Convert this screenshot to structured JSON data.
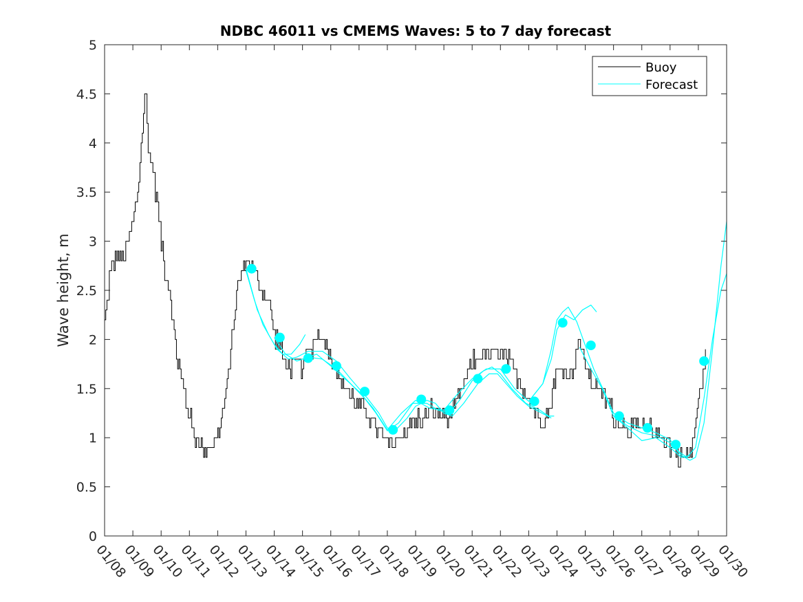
{
  "chart_data": {
    "type": "line",
    "title": "NDBC 46011 vs CMEMS Waves: 5 to 7 day forecast",
    "xlabel": "",
    "ylabel": "Wave height, m",
    "xlim": [
      0,
      22
    ],
    "ylim": [
      0,
      5
    ],
    "x_unit": "days since 01/08",
    "yticks": [
      0,
      0.5,
      1,
      1.5,
      2,
      2.5,
      3,
      3.5,
      4,
      4.5,
      5
    ],
    "ytick_labels": [
      "0",
      "0.5",
      "1",
      "1.5",
      "2",
      "2.5",
      "3",
      "3.5",
      "4",
      "4.5",
      "5"
    ],
    "xticks": [
      0,
      1,
      2,
      3,
      4,
      5,
      6,
      7,
      8,
      9,
      10,
      11,
      12,
      13,
      14,
      15,
      16,
      17,
      18,
      19,
      20,
      21,
      22
    ],
    "xtick_labels": [
      "01/08",
      "01/09",
      "01/10",
      "01/11",
      "01/12",
      "01/13",
      "01/14",
      "01/15",
      "01/16",
      "01/17",
      "01/18",
      "01/19",
      "01/20",
      "01/21",
      "01/22",
      "01/23",
      "01/24",
      "01/25",
      "01/26",
      "01/27",
      "01/28",
      "01/29",
      "01/30"
    ],
    "legend": {
      "position": "top-right",
      "entries": [
        {
          "label": "Buoy",
          "color": "#000000"
        },
        {
          "label": "Forecast",
          "color": "#00ffff"
        }
      ]
    },
    "buoy": {
      "name": "Buoy",
      "color": "#000000",
      "noise_amplitude": 0.13,
      "points": [
        [
          0,
          2.15
        ],
        [
          0.15,
          2.6
        ],
        [
          0.3,
          2.8
        ],
        [
          0.5,
          2.85
        ],
        [
          0.7,
          2.8
        ],
        [
          0.85,
          3.05
        ],
        [
          1.0,
          3.2
        ],
        [
          1.2,
          3.6
        ],
        [
          1.35,
          4.2
        ],
        [
          1.45,
          4.5
        ],
        [
          1.55,
          3.9
        ],
        [
          1.7,
          3.75
        ],
        [
          1.85,
          3.4
        ],
        [
          2.0,
          3.0
        ],
        [
          2.15,
          2.7
        ],
        [
          2.3,
          2.5
        ],
        [
          2.4,
          2.2
        ],
        [
          2.55,
          1.85
        ],
        [
          2.7,
          1.6
        ],
        [
          2.9,
          1.35
        ],
        [
          3.1,
          1.1
        ],
        [
          3.3,
          0.95
        ],
        [
          3.5,
          0.88
        ],
        [
          3.7,
          0.9
        ],
        [
          3.9,
          0.97
        ],
        [
          4.1,
          1.15
        ],
        [
          4.3,
          1.45
        ],
        [
          4.45,
          1.9
        ],
        [
          4.6,
          2.3
        ],
        [
          4.8,
          2.7
        ],
        [
          5.0,
          2.8
        ],
        [
          5.2,
          2.75
        ],
        [
          5.4,
          2.6
        ],
        [
          5.6,
          2.5
        ],
        [
          5.8,
          2.4
        ],
        [
          6.0,
          2.05
        ],
        [
          6.2,
          1.9
        ],
        [
          6.4,
          1.75
        ],
        [
          6.6,
          1.72
        ],
        [
          6.8,
          1.75
        ],
        [
          7.0,
          1.7
        ],
        [
          7.2,
          1.85
        ],
        [
          7.4,
          2.0
        ],
        [
          7.6,
          2.05
        ],
        [
          7.8,
          1.95
        ],
        [
          8.0,
          1.85
        ],
        [
          8.2,
          1.65
        ],
        [
          8.5,
          1.5
        ],
        [
          8.8,
          1.4
        ],
        [
          9.1,
          1.3
        ],
        [
          9.4,
          1.2
        ],
        [
          9.7,
          1.05
        ],
        [
          10.0,
          0.95
        ],
        [
          10.3,
          0.95
        ],
        [
          10.6,
          1.05
        ],
        [
          10.9,
          1.15
        ],
        [
          11.2,
          1.2
        ],
        [
          11.5,
          1.25
        ],
        [
          11.8,
          1.25
        ],
        [
          12.1,
          1.2
        ],
        [
          12.4,
          1.3
        ],
        [
          12.7,
          1.55
        ],
        [
          13.0,
          1.75
        ],
        [
          13.3,
          1.85
        ],
        [
          13.6,
          1.85
        ],
        [
          13.9,
          1.85
        ],
        [
          14.2,
          1.8
        ],
        [
          14.5,
          1.65
        ],
        [
          14.8,
          1.5
        ],
        [
          15.1,
          1.3
        ],
        [
          15.3,
          1.25
        ],
        [
          15.5,
          1.2
        ],
        [
          15.7,
          1.25
        ],
        [
          15.85,
          1.55
        ],
        [
          16.1,
          1.7
        ],
        [
          16.4,
          1.65
        ],
        [
          16.6,
          1.75
        ],
        [
          16.75,
          2.05
        ],
        [
          16.9,
          1.8
        ],
        [
          17.2,
          1.6
        ],
        [
          17.5,
          1.45
        ],
        [
          17.8,
          1.35
        ],
        [
          18.1,
          1.2
        ],
        [
          18.4,
          1.1
        ],
        [
          18.7,
          1.1
        ],
        [
          19.0,
          1.1
        ],
        [
          19.3,
          1.07
        ],
        [
          19.6,
          1.05
        ],
        [
          19.9,
          0.95
        ],
        [
          20.2,
          0.85
        ],
        [
          20.5,
          0.8
        ],
        [
          20.7,
          0.85
        ],
        [
          20.85,
          1.05
        ],
        [
          21.0,
          1.35
        ],
        [
          21.15,
          1.65
        ],
        [
          21.25,
          1.8
        ]
      ]
    },
    "forecast_runs": [
      {
        "name": "Forecast",
        "color": "#00ffff",
        "points": [
          [
            5.0,
            2.7
          ],
          [
            5.3,
            2.4
          ],
          [
            5.6,
            2.15
          ],
          [
            6.0,
            1.95
          ],
          [
            6.3,
            1.85
          ],
          [
            6.6,
            1.85
          ],
          [
            6.9,
            1.95
          ],
          [
            7.1,
            2.05
          ]
        ]
      },
      {
        "name": "Forecast",
        "color": "#00ffff",
        "points": [
          [
            5.0,
            2.72
          ],
          [
            5.4,
            2.3
          ],
          [
            5.8,
            2.05
          ],
          [
            6.1,
            1.9
          ],
          [
            6.5,
            1.8
          ],
          [
            6.8,
            1.82
          ],
          [
            7.2,
            1.88
          ],
          [
            7.7,
            1.88
          ],
          [
            8.2,
            1.78
          ],
          [
            8.7,
            1.6
          ],
          [
            9.3,
            1.4
          ],
          [
            9.7,
            1.25
          ],
          [
            10.0,
            1.1
          ],
          [
            10.3,
            1.08
          ],
          [
            10.7,
            1.2
          ],
          [
            11.0,
            1.32
          ],
          [
            11.4,
            1.38
          ],
          [
            11.7,
            1.35
          ],
          [
            12.0,
            1.25
          ],
          [
            12.3,
            1.22
          ],
          [
            12.7,
            1.35
          ],
          [
            13.2,
            1.55
          ],
          [
            13.6,
            1.65
          ],
          [
            13.9,
            1.65
          ],
          [
            14.2,
            1.55
          ],
          [
            14.6,
            1.42
          ],
          [
            15.0,
            1.32
          ],
          [
            15.4,
            1.26
          ],
          [
            15.8,
            1.2
          ]
        ]
      },
      {
        "name": "Forecast",
        "color": "#00ffff",
        "points": [
          [
            6.0,
            2.02
          ],
          [
            6.4,
            1.85
          ],
          [
            6.8,
            1.78
          ],
          [
            7.2,
            1.82
          ],
          [
            7.7,
            1.8
          ],
          [
            8.2,
            1.7
          ],
          [
            8.7,
            1.55
          ],
          [
            9.2,
            1.4
          ],
          [
            9.6,
            1.25
          ],
          [
            10.0,
            1.07
          ],
          [
            10.4,
            1.15
          ],
          [
            10.9,
            1.35
          ],
          [
            11.4,
            1.35
          ],
          [
            11.8,
            1.28
          ],
          [
            12.2,
            1.25
          ],
          [
            12.6,
            1.4
          ],
          [
            13.0,
            1.58
          ],
          [
            13.4,
            1.68
          ],
          [
            13.7,
            1.72
          ],
          [
            14.0,
            1.65
          ],
          [
            14.4,
            1.5
          ],
          [
            14.9,
            1.35
          ],
          [
            15.4,
            1.28
          ],
          [
            15.7,
            1.22
          ],
          [
            15.9,
            1.22
          ]
        ]
      },
      {
        "name": "Forecast",
        "color": "#00ffff",
        "points": [
          [
            7.0,
            1.8
          ],
          [
            7.5,
            1.85
          ],
          [
            8.0,
            1.73
          ],
          [
            8.5,
            1.6
          ],
          [
            9.0,
            1.47
          ],
          [
            9.5,
            1.3
          ],
          [
            10.0,
            1.08
          ],
          [
            10.5,
            1.25
          ],
          [
            11.0,
            1.38
          ],
          [
            11.5,
            1.3
          ],
          [
            12.0,
            1.28
          ],
          [
            12.5,
            1.45
          ],
          [
            13.0,
            1.6
          ],
          [
            13.5,
            1.7
          ],
          [
            14.0,
            1.7
          ],
          [
            14.5,
            1.5
          ],
          [
            15.0,
            1.37
          ],
          [
            15.5,
            1.55
          ],
          [
            15.8,
            1.8
          ],
          [
            16.0,
            2.1
          ],
          [
            16.3,
            2.25
          ],
          [
            16.6,
            2.2
          ],
          [
            16.9,
            2.3
          ],
          [
            17.2,
            2.35
          ],
          [
            17.4,
            2.28
          ]
        ]
      },
      {
        "name": "Forecast",
        "color": "#00ffff",
        "points": [
          [
            15.0,
            1.37
          ],
          [
            15.5,
            1.55
          ],
          [
            15.8,
            1.9
          ],
          [
            16.0,
            2.2
          ],
          [
            16.2,
            2.28
          ],
          [
            16.4,
            2.33
          ],
          [
            16.7,
            2.18
          ],
          [
            17.0,
            1.94
          ],
          [
            17.3,
            1.7
          ],
          [
            17.7,
            1.45
          ],
          [
            18.0,
            1.25
          ],
          [
            18.5,
            1.15
          ],
          [
            19.0,
            1.1
          ],
          [
            19.5,
            1.05
          ],
          [
            20.0,
            0.98
          ],
          [
            20.3,
            0.86
          ],
          [
            20.6,
            0.8
          ],
          [
            20.9,
            0.9
          ],
          [
            21.2,
            1.4
          ],
          [
            21.5,
            2.0
          ],
          [
            21.8,
            2.5
          ],
          [
            22.0,
            2.67
          ]
        ]
      },
      {
        "name": "Forecast",
        "color": "#00ffff",
        "points": [
          [
            16.8,
            1.92
          ],
          [
            17.2,
            1.7
          ],
          [
            17.6,
            1.5
          ],
          [
            18.0,
            1.22
          ],
          [
            18.5,
            1.12
          ],
          [
            19.0,
            1.05
          ],
          [
            19.5,
            1.02
          ],
          [
            20.0,
            0.95
          ],
          [
            20.4,
            0.82
          ],
          [
            20.7,
            0.77
          ],
          [
            20.9,
            0.8
          ],
          [
            21.2,
            1.15
          ],
          [
            21.5,
            1.9
          ],
          [
            21.8,
            2.75
          ],
          [
            22.0,
            3.2
          ]
        ]
      },
      {
        "name": "Forecast",
        "color": "#00ffff",
        "points": [
          [
            18.0,
            1.22
          ],
          [
            18.5,
            1.1
          ],
          [
            19.0,
            0.97
          ],
          [
            19.5,
            1.0
          ],
          [
            20.0,
            0.9
          ],
          [
            20.4,
            0.8
          ],
          [
            20.7,
            0.82
          ]
        ]
      }
    ],
    "forecast_markers": {
      "color": "#00ffff",
      "points": [
        [
          5.2,
          2.72
        ],
        [
          6.2,
          2.02
        ],
        [
          7.2,
          1.81
        ],
        [
          8.2,
          1.73
        ],
        [
          9.2,
          1.47
        ],
        [
          10.2,
          1.08
        ],
        [
          11.2,
          1.39
        ],
        [
          12.2,
          1.28
        ],
        [
          13.2,
          1.6
        ],
        [
          14.2,
          1.7
        ],
        [
          15.2,
          1.37
        ],
        [
          16.2,
          2.17
        ],
        [
          17.2,
          1.94
        ],
        [
          18.2,
          1.22
        ],
        [
          19.2,
          1.1
        ],
        [
          20.2,
          0.93
        ],
        [
          21.2,
          1.78
        ]
      ]
    }
  }
}
